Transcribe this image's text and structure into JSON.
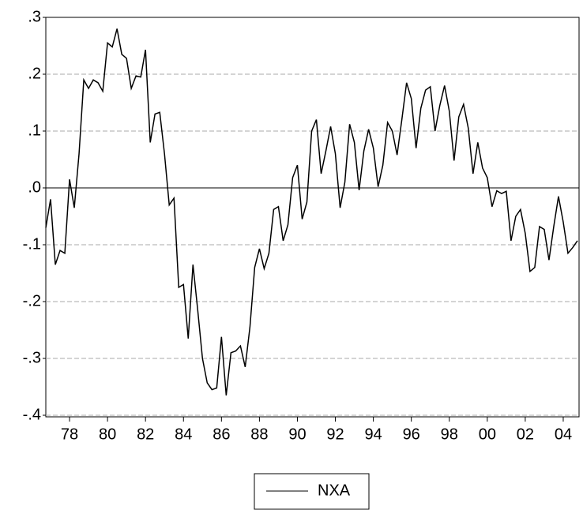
{
  "chart_data": {
    "type": "line",
    "categories": [
      null,
      null,
      null,
      null,
      null,
      "78",
      null,
      null,
      null,
      null,
      null,
      null,
      null,
      "80",
      null,
      null,
      null,
      null,
      null,
      null,
      null,
      "82",
      null,
      null,
      null,
      null,
      null,
      null,
      null,
      "84",
      null,
      null,
      null,
      null,
      null,
      null,
      null,
      "86",
      null,
      null,
      null,
      null,
      null,
      null,
      null,
      "88",
      null,
      null,
      null,
      null,
      null,
      null,
      null,
      "90",
      null,
      null,
      null,
      null,
      null,
      null,
      null,
      "92",
      null,
      null,
      null,
      null,
      null,
      null,
      null,
      "94",
      null,
      null,
      null,
      null,
      null,
      null,
      null,
      "96",
      null,
      null,
      null,
      null,
      null,
      null,
      null,
      "98",
      null,
      null,
      null,
      null,
      null,
      null,
      null,
      "00",
      null,
      null,
      null,
      null,
      null,
      null,
      null,
      "02",
      null,
      null,
      null,
      null,
      null,
      null,
      null,
      "04",
      null,
      null,
      null
    ],
    "series": [
      {
        "name": "NXA",
        "color": "#000000",
        "values": [
          -0.07,
          -0.02,
          -0.135,
          -0.11,
          -0.115,
          0.015,
          -0.035,
          0.06,
          0.19,
          0.175,
          0.19,
          0.185,
          0.17,
          0.255,
          0.248,
          0.28,
          0.235,
          0.228,
          0.175,
          0.197,
          0.195,
          0.243,
          0.08,
          0.13,
          0.133,
          0.06,
          -0.03,
          -0.018,
          -0.175,
          -0.17,
          -0.265,
          -0.135,
          -0.215,
          -0.3,
          -0.343,
          -0.355,
          -0.352,
          -0.262,
          -0.365,
          -0.29,
          -0.287,
          -0.278,
          -0.315,
          -0.245,
          -0.14,
          -0.107,
          -0.142,
          -0.115,
          -0.038,
          -0.033,
          -0.093,
          -0.065,
          0.018,
          0.04,
          -0.055,
          -0.025,
          0.1,
          0.12,
          0.025,
          0.065,
          0.108,
          0.06,
          -0.035,
          0.01,
          0.112,
          0.08,
          -0.004,
          0.065,
          0.103,
          0.07,
          0.002,
          0.04,
          0.115,
          0.1,
          0.058,
          0.12,
          0.185,
          0.157,
          0.07,
          0.14,
          0.172,
          0.178,
          0.1,
          0.145,
          0.18,
          0.135,
          0.048,
          0.125,
          0.147,
          0.105,
          0.025,
          0.08,
          0.035,
          0.018,
          -0.033,
          -0.005,
          -0.01,
          -0.006,
          -0.093,
          -0.05,
          -0.038,
          -0.08,
          -0.147,
          -0.14,
          -0.068,
          -0.073,
          -0.127,
          -0.068,
          -0.015,
          -0.06,
          -0.115,
          -0.105,
          -0.093
        ]
      }
    ],
    "ylim": [
      -0.4,
      0.3
    ],
    "yticks": [
      {
        "value": 0.3,
        "label": ".3"
      },
      {
        "value": 0.2,
        "label": ".2"
      },
      {
        "value": 0.1,
        "label": ".1"
      },
      {
        "value": 0,
        "label": ".0"
      },
      {
        "value": -0.1,
        "label": "-.1"
      },
      {
        "value": -0.2,
        "label": "-.2"
      },
      {
        "value": -0.3,
        "label": "-.3"
      },
      {
        "value": -0.4,
        "label": "-.4"
      }
    ],
    "grid": true,
    "zero_line": true,
    "legend": "bottom"
  }
}
